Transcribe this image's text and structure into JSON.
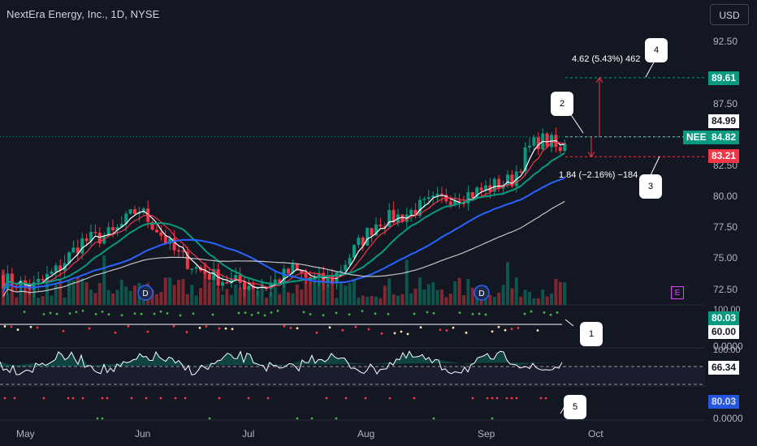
{
  "header": {
    "symbol_title": "NextEra Energy, Inc., 1D, NYSE",
    "currency_button": "USD"
  },
  "price_axis": {
    "ticks": [
      "92.50",
      "87.50",
      "82.50",
      "80.00",
      "77.50",
      "75.00",
      "72.50"
    ],
    "tags": {
      "target": "89.61",
      "high": "84.99",
      "symbol": "NEE",
      "last": "84.82",
      "stop": "83.21"
    }
  },
  "indicator_axis": {
    "pane1_ticks": [
      "100.00",
      "0.0000"
    ],
    "pane1_tags": [
      "80.03",
      "60.00"
    ],
    "pane2_ticks": [
      "100.00"
    ],
    "pane2_tag": "66.34",
    "pane3_tag": "80.03",
    "pane3_ticks": [
      "0.0000"
    ]
  },
  "time_axis": {
    "labels": [
      "May",
      "Jun",
      "Jul",
      "Aug",
      "Sep",
      "Oct"
    ]
  },
  "annotations": {
    "measure_up": "4.62 (5.43%) 462",
    "measure_down": "1.84 (−2.16%) −184",
    "callouts": [
      "1",
      "2",
      "3",
      "4",
      "5"
    ],
    "dividend_marker": "D",
    "earnings_marker": "E"
  },
  "colors": {
    "background": "#131722",
    "up": "#089981",
    "down": "#f23645",
    "ma_fast": "#ffffff",
    "ma_red": "#f23645",
    "ma_green": "#089981",
    "ma_blue": "#2962ff"
  },
  "chart_data": {
    "type": "candlestick",
    "ylim": [
      71.0,
      94.0
    ],
    "x_range": [
      "May",
      "Oct"
    ],
    "last_price": 84.82,
    "target_price": 89.61,
    "stop_price": 83.21
  }
}
